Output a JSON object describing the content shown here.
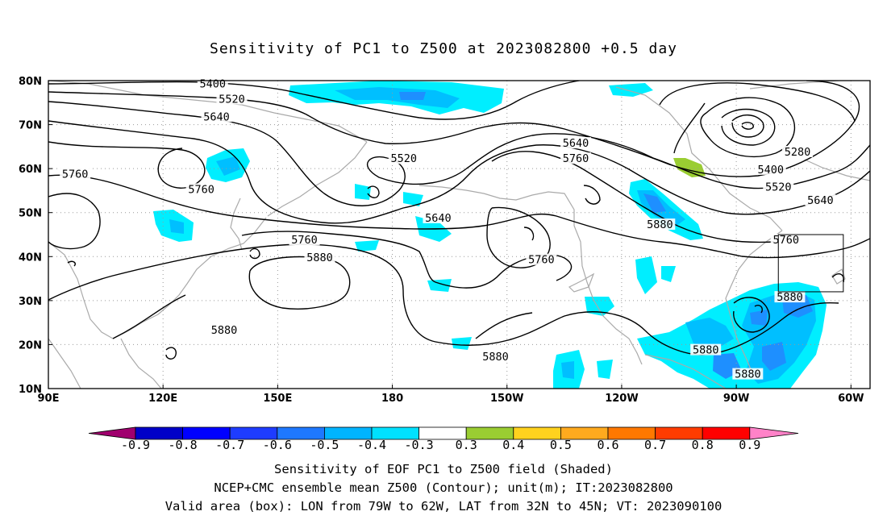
{
  "title": "Sensitivity of PC1 to Z500 at 2023082800 +0.5 day",
  "map": {
    "lon_range": [
      90,
      305
    ],
    "lat_range": [
      10,
      80
    ],
    "lat_ticks": [
      {
        "lat": 80,
        "label": "80N"
      },
      {
        "lat": 70,
        "label": "70N"
      },
      {
        "lat": 60,
        "label": "60N"
      },
      {
        "lat": 50,
        "label": "50N"
      },
      {
        "lat": 40,
        "label": "40N"
      },
      {
        "lat": 30,
        "label": "30N"
      },
      {
        "lat": 20,
        "label": "20N"
      },
      {
        "lat": 10,
        "label": "10N"
      }
    ],
    "lon_ticks": [
      {
        "lon": 90,
        "label": "90E"
      },
      {
        "lon": 120,
        "label": "120E"
      },
      {
        "lon": 150,
        "label": "150E"
      },
      {
        "lon": 180,
        "label": "180"
      },
      {
        "lon": 210,
        "label": "150W"
      },
      {
        "lon": 240,
        "label": "120W"
      },
      {
        "lon": 270,
        "label": "90W"
      },
      {
        "lon": 300,
        "label": "60W"
      }
    ],
    "grid_lons": [
      120,
      150,
      180,
      210,
      240,
      270,
      300
    ],
    "grid_lats": [
      20,
      30,
      40,
      50,
      60,
      70
    ],
    "valid_box": {
      "lon_min": 281,
      "lon_max": 298,
      "lat_min": 32,
      "lat_max": 45
    },
    "contour_labels": [
      {
        "text": "5400",
        "lon": 133,
        "lat": 79
      },
      {
        "text": "5520",
        "lon": 138,
        "lat": 75.5
      },
      {
        "text": "5640",
        "lon": 134,
        "lat": 71.5
      },
      {
        "text": "5760",
        "lon": 97,
        "lat": 58.5
      },
      {
        "text": "5760",
        "lon": 130,
        "lat": 55
      },
      {
        "text": "5520",
        "lon": 183,
        "lat": 62
      },
      {
        "text": "5640",
        "lon": 192,
        "lat": 48.5
      },
      {
        "text": "5760",
        "lon": 157,
        "lat": 43.5
      },
      {
        "text": "5880",
        "lon": 161,
        "lat": 39.5
      },
      {
        "text": "5880",
        "lon": 136,
        "lat": 23
      },
      {
        "text": "5640",
        "lon": 228,
        "lat": 65.5
      },
      {
        "text": "5760",
        "lon": 228,
        "lat": 62
      },
      {
        "text": "5760",
        "lon": 219,
        "lat": 39
      },
      {
        "text": "5880",
        "lon": 250,
        "lat": 47
      },
      {
        "text": "5880",
        "lon": 207,
        "lat": 17
      },
      {
        "text": "5280",
        "lon": 286,
        "lat": 63.5
      },
      {
        "text": "5400",
        "lon": 279,
        "lat": 59.5
      },
      {
        "text": "5520",
        "lon": 281,
        "lat": 55.5
      },
      {
        "text": "5640",
        "lon": 292,
        "lat": 52.5
      },
      {
        "text": "5760",
        "lon": 283,
        "lat": 43.5
      },
      {
        "text": "5880",
        "lon": 284,
        "lat": 30.5
      },
      {
        "text": "5880",
        "lon": 262,
        "lat": 18.5
      },
      {
        "text": "5880",
        "lon": 273,
        "lat": 13
      }
    ],
    "shaded_color_name": "cyan-light-blue negative sensitivity, green positive",
    "colors": {
      "neg_03": "#00ffff",
      "neg_04": "#00bfff",
      "neg_05": "#1e8fff",
      "pos_03": "#9acd32",
      "land": "#aaaaaa"
    }
  },
  "colorbar": {
    "values": [
      -0.9,
      -0.8,
      -0.7,
      -0.6,
      -0.5,
      -0.4,
      -0.3,
      0.3,
      0.4,
      0.5,
      0.6,
      0.7,
      0.8,
      0.9
    ],
    "labels": [
      "-0.9",
      "-0.8",
      "-0.7",
      "-0.6",
      "-0.5",
      "-0.4",
      "-0.3",
      "0.3",
      "0.4",
      "0.5",
      "0.6",
      "0.7",
      "0.8",
      "0.9"
    ],
    "colors": [
      "#a0006e",
      "#0000c8",
      "#0000ff",
      "#1e3cff",
      "#1e78ff",
      "#00b4ff",
      "#00e1ff",
      "#ffffff",
      "#9acd32",
      "#ffd21e",
      "#ffaa1e",
      "#ff7800",
      "#ff3c00",
      "#ff0000",
      "#ff82c8"
    ]
  },
  "footer": {
    "line1": "Sensitivity of EOF PC1 to Z500 field (Shaded)",
    "line2": "NCEP+CMC ensemble mean Z500 (Contour); unit(m); IT:2023082800",
    "line3": "Valid area (box): LON from 79W to 62W, LAT from 32N to 45N; VT: 2023090100"
  }
}
